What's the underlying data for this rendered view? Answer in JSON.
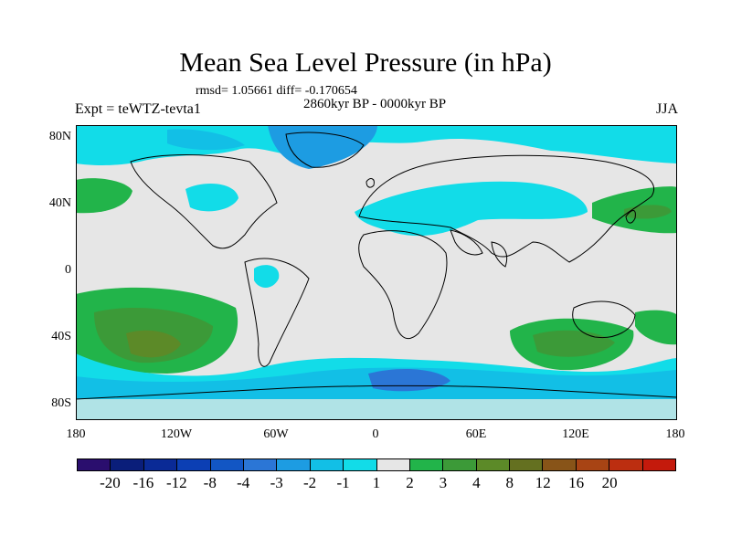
{
  "title": "Mean Sea Level Pressure (in hPa)",
  "stats": "rmsd= 1.05661 diff= -0.170654",
  "period": "2860kyr BP - 0000kyr BP",
  "experiment": "Expt = teWTZ-tevta1",
  "season": "JJA",
  "lat_labels": [
    "80N",
    "40N",
    "0",
    "40S",
    "80S"
  ],
  "lon_labels": [
    "180",
    "120W",
    "60W",
    "0",
    "60E",
    "120E",
    "180"
  ],
  "colorbar": {
    "colors": [
      "#2a0e6e",
      "#0a1e7a",
      "#0a2a96",
      "#0c3fb4",
      "#1256c4",
      "#2b76d6",
      "#1d9ce2",
      "#12bfe6",
      "#12dce8",
      "#e6e6e6",
      "#22b44a",
      "#3c9a38",
      "#5c8a28",
      "#647020",
      "#885418",
      "#a84414",
      "#bc2e10",
      "#c41a0c"
    ],
    "labels": [
      "-20",
      "-16",
      "-12",
      "-8",
      "-4",
      "-3",
      "-2",
      "-1",
      "1",
      "2",
      "3",
      "4",
      "8",
      "12",
      "16",
      "20"
    ]
  },
  "legend_colors": {
    "land_neutral": "#e6e6e6",
    "light_blue": "#12dce8",
    "mid_blue": "#12bfe6",
    "blue": "#1d9ce2",
    "dark_blue": "#2b76d6",
    "green": "#22b44a",
    "dark_green": "#3c9a38",
    "olive": "#647020",
    "coast": "#000000"
  }
}
